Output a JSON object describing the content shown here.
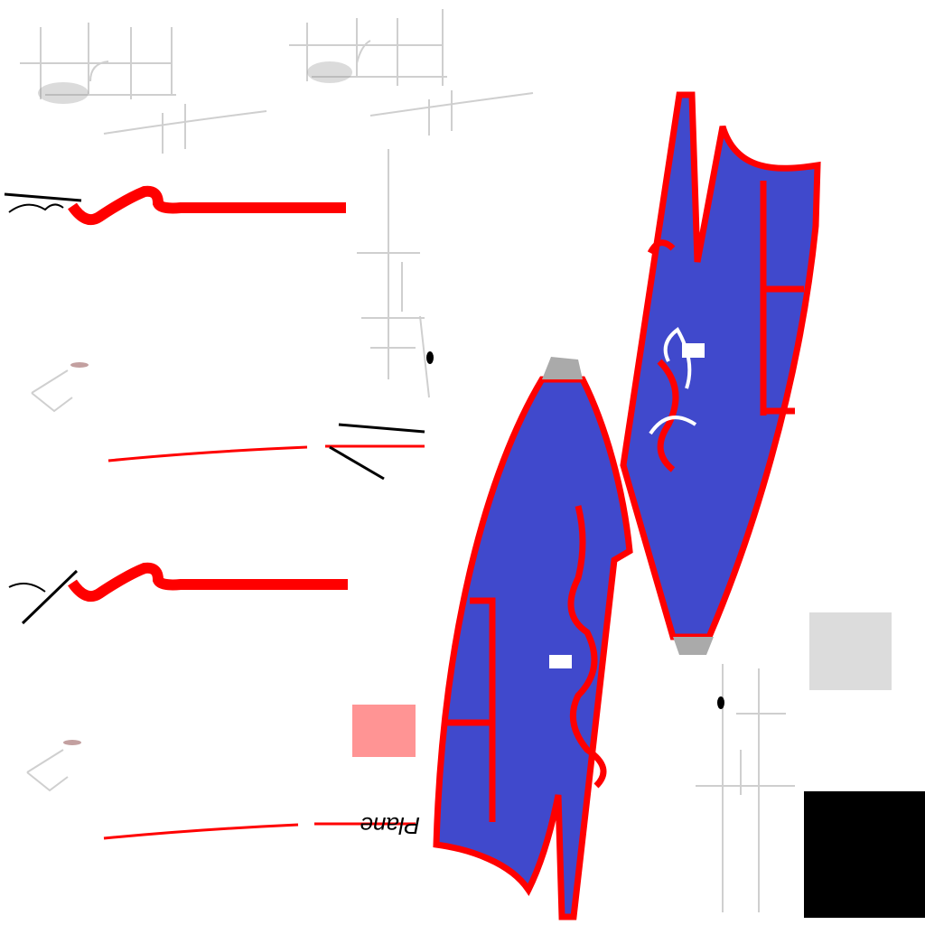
{
  "texts": [
    "Plane"
  ]
}
